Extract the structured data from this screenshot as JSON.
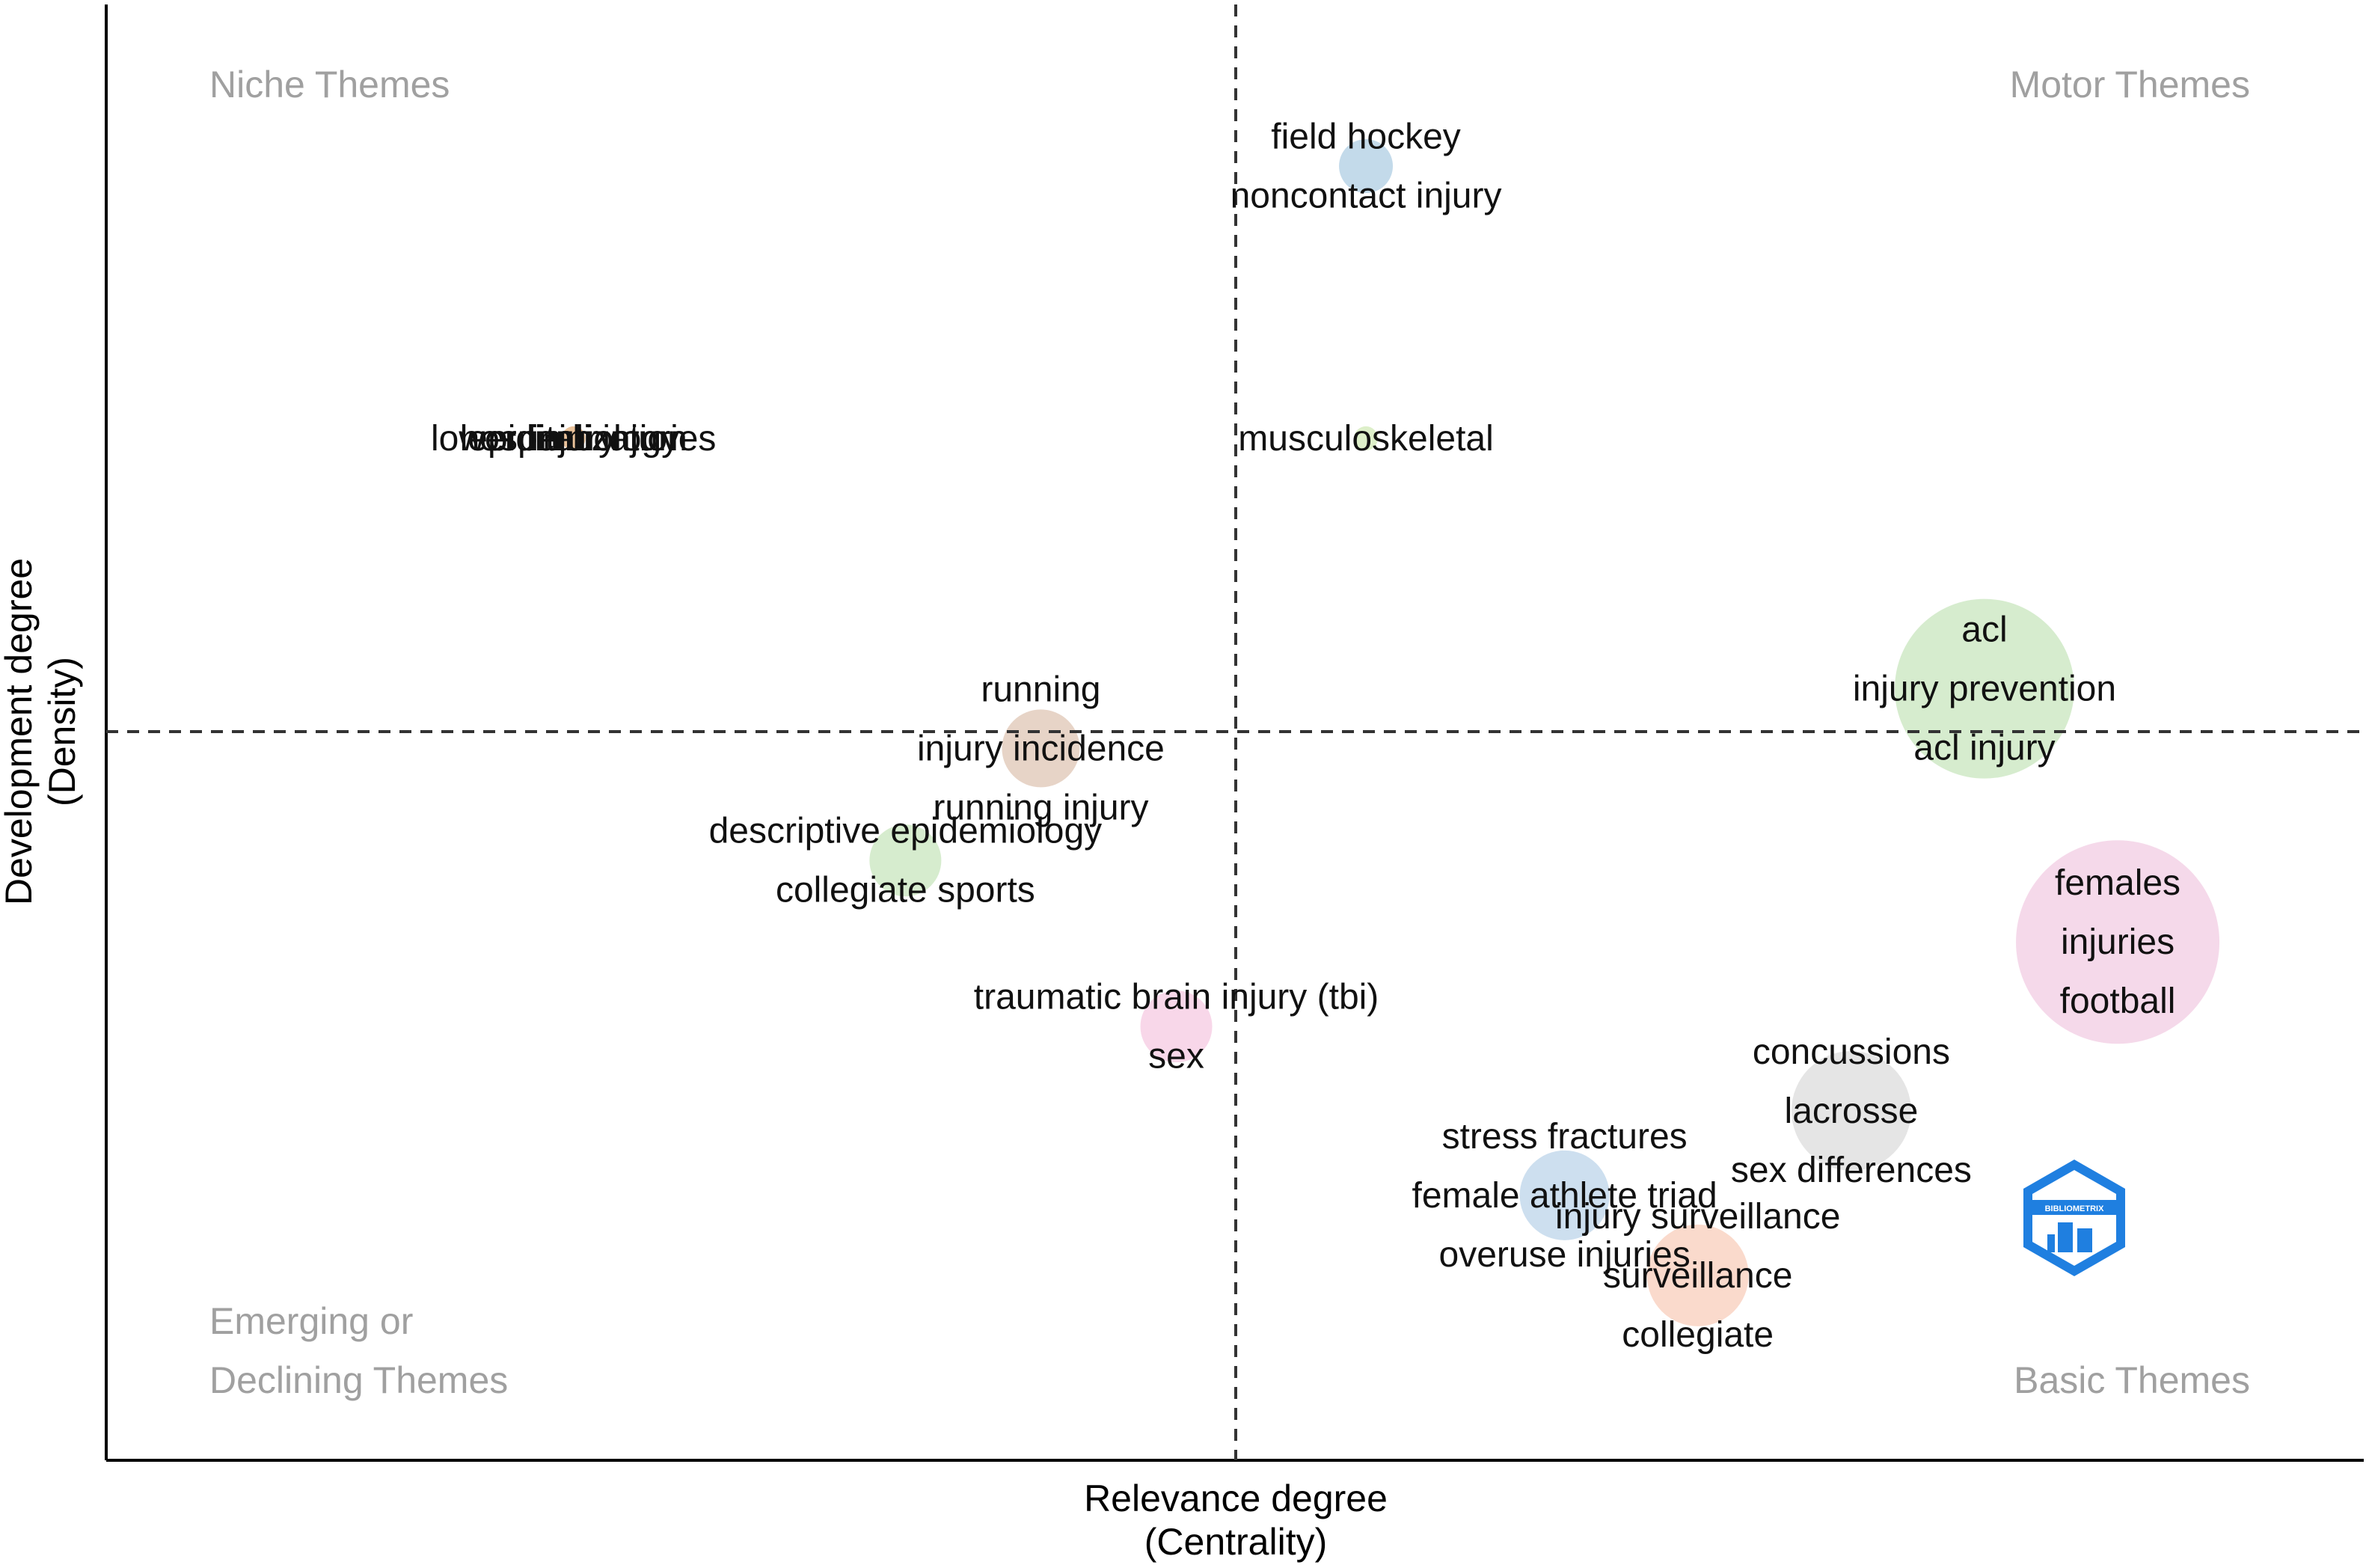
{
  "chart_data": {
    "type": "scatter",
    "title": "",
    "xlabel": [
      "Relevance degree",
      "(Centrality)"
    ],
    "ylabel": [
      "Development degree",
      "(Density)"
    ],
    "xlim": [
      0,
      100
    ],
    "ylim": [
      0,
      100
    ],
    "x_divider": 50,
    "y_divider": 50,
    "grid": false,
    "legend": "none",
    "quadrants": [
      {
        "id": "niche",
        "lines": [
          "Niche Themes"
        ]
      },
      {
        "id": "motor",
        "lines": [
          "Motor Themes"
        ]
      },
      {
        "id": "emerging",
        "lines": [
          "Emerging or",
          "Declining Themes"
        ]
      },
      {
        "id": "basic",
        "lines": [
          "Basic Themes"
        ]
      }
    ],
    "clusters": [
      {
        "x": 55.8,
        "y": 88.9,
        "size": 18,
        "color": "#b9d3e6",
        "labels": [
          "field hockey",
          "noncontact injury"
        ]
      },
      {
        "x": 55.8,
        "y": 70.2,
        "size": 8,
        "color": "#d7ecc0",
        "labels": [
          "musculoskeletal"
        ]
      },
      {
        "x": 20.7,
        "y": 70.2,
        "size": 8,
        "color": "#e8b98a",
        "labels": [
          "lower limb injuries",
          "hospitalization",
          "epidemiology",
          "injury"
        ]
      },
      {
        "x": 83.2,
        "y": 53.0,
        "size": 60,
        "color": "#cfe9c6",
        "labels": [
          "acl",
          "injury prevention",
          "acl injury"
        ]
      },
      {
        "x": 41.4,
        "y": 48.9,
        "size": 26,
        "color": "#e3cdbd",
        "labels": [
          "running",
          "injury incidence",
          "running injury"
        ]
      },
      {
        "x": 35.4,
        "y": 41.2,
        "size": 24,
        "color": "#cfe9c6",
        "labels": [
          "descriptive epidemiology",
          "collegiate sports"
        ]
      },
      {
        "x": 89.1,
        "y": 35.6,
        "size": 68,
        "color": "#f3d2e6",
        "labels": [
          "females",
          "injuries",
          "football"
        ]
      },
      {
        "x": 47.4,
        "y": 29.8,
        "size": 24,
        "color": "#f7d0e5",
        "labels": [
          "traumatic brain injury (tbi)",
          "sex"
        ]
      },
      {
        "x": 77.3,
        "y": 24.0,
        "size": 40,
        "color": "#e0e0e0",
        "labels": [
          "concussions",
          "lacrosse",
          "sex differences"
        ]
      },
      {
        "x": 64.6,
        "y": 18.2,
        "size": 30,
        "color": "#c4d9ec",
        "labels": [
          "stress fractures",
          "female athlete triad",
          "overuse injuries"
        ]
      },
      {
        "x": 70.5,
        "y": 12.7,
        "size": 34,
        "color": "#f9d4c3",
        "labels": [
          "injury surveillance",
          "surveillance",
          "collegiate"
        ]
      }
    ]
  },
  "logo": {
    "text": "BIBLIOMETRIX",
    "color": "#1f7fe0",
    "icon": "bibliometrix-logo"
  }
}
